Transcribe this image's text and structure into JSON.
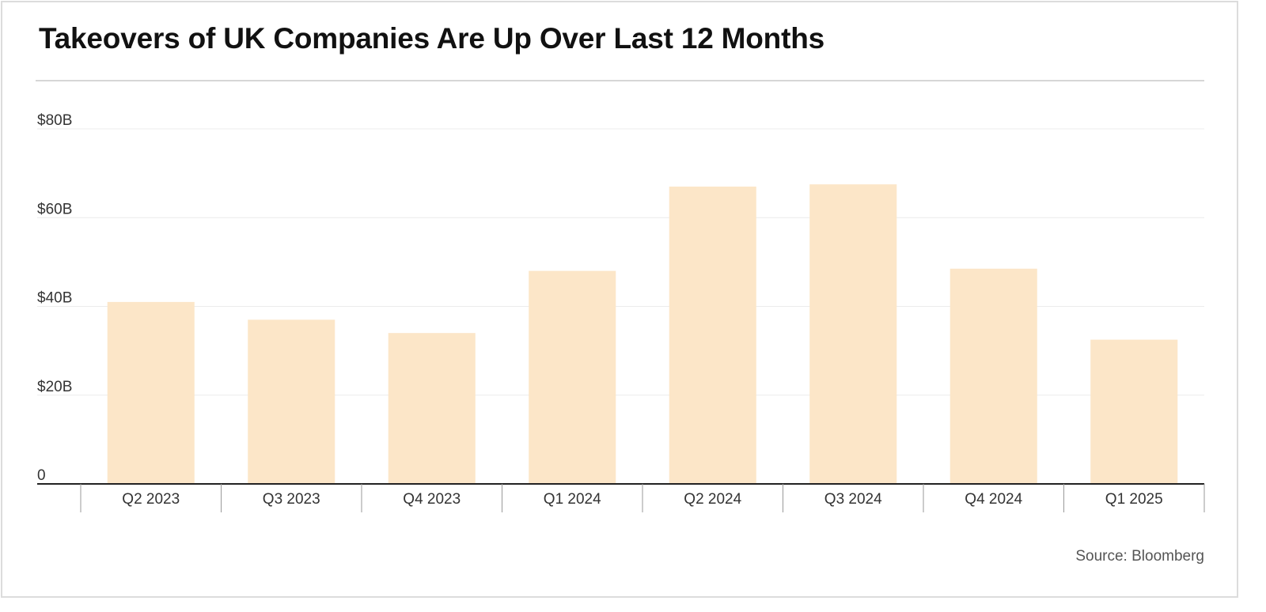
{
  "chart_data": {
    "type": "bar",
    "title": "Takeovers of UK Companies Are Up Over Last 12 Months",
    "source": "Source: Bloomberg",
    "xlabel": "",
    "ylabel": "",
    "categories": [
      "Q2 2023",
      "Q3 2023",
      "Q4 2023",
      "Q1 2024",
      "Q2 2024",
      "Q3 2024",
      "Q4 2024",
      "Q1 2025"
    ],
    "values": [
      41,
      37,
      34,
      48,
      67,
      67.5,
      48.5,
      32.5
    ],
    "ylim": [
      0,
      80
    ],
    "yticks": [
      {
        "value": 0,
        "label": "0"
      },
      {
        "value": 20,
        "label": "$20B"
      },
      {
        "value": 40,
        "label": "$40B"
      },
      {
        "value": 60,
        "label": "$60B"
      },
      {
        "value": 80,
        "label": "$80B"
      }
    ],
    "grid": true,
    "legend": "none",
    "colors": {
      "bar": "#fce6c8",
      "grid": "#ececec",
      "axis": "#222222",
      "tick_divider": "#999999"
    }
  }
}
